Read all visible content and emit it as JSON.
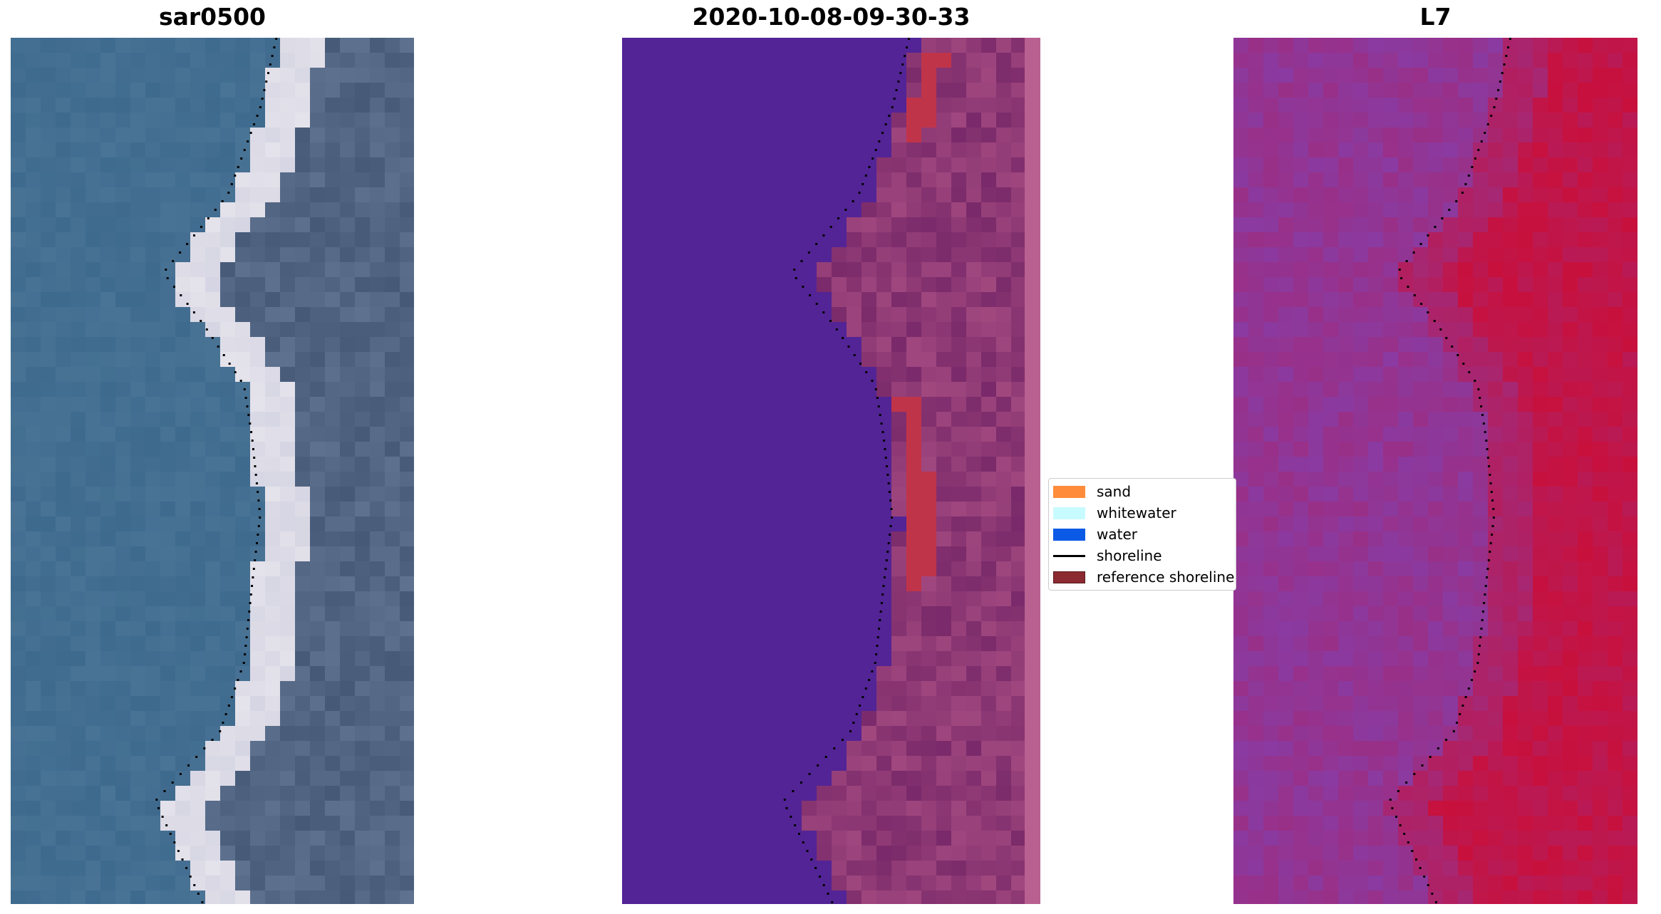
{
  "panels": [
    {
      "id": "rgb",
      "title": "sar0500"
    },
    {
      "id": "class",
      "title": "2020-10-08-09-30-33"
    },
    {
      "id": "mndwi",
      "title": "L7"
    }
  ],
  "legend": {
    "items": [
      {
        "label": "sand",
        "color": "#ff8c3a"
      },
      {
        "label": "whitewater",
        "color": "#c8fbff"
      },
      {
        "label": "water",
        "color": "#0a5ae6"
      },
      {
        "label": "shoreline",
        "color": "#000000"
      },
      {
        "label": "reference shoreline",
        "color": "#8b2a31"
      }
    ]
  },
  "colors": {
    "rgb_water": "#3e6a8e",
    "rgb_sand": "#e4e2ea",
    "class_water": "#532495",
    "class_land": "#7a2a6a",
    "class_sand": "#c0344a",
    "index_low": "#8a3aa0",
    "index_high": "#c8103c"
  }
}
